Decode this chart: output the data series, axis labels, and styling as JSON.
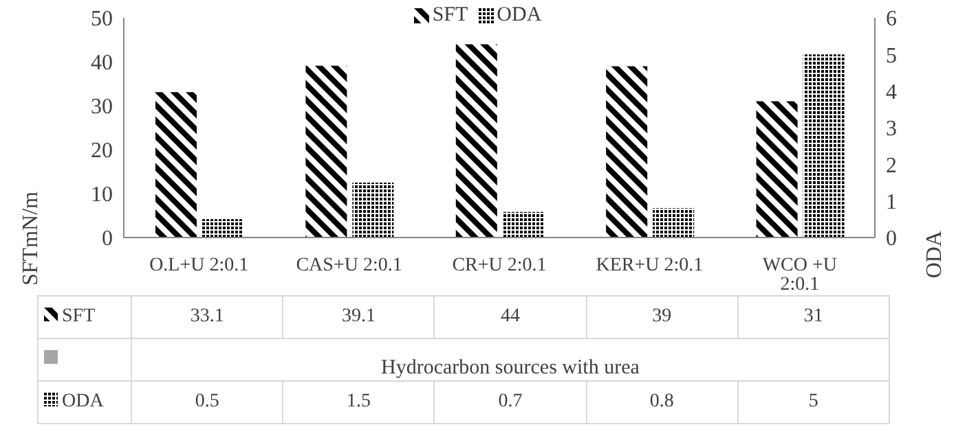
{
  "chart_data": {
    "type": "bar",
    "xlabel": "Hydrocarbon sources with urea",
    "ylabel": "SFTmN/m",
    "y2label": "ODA",
    "categories": [
      "O.L+U 2:0.1",
      "CAS+U 2:0.1",
      "CR+U 2:0.1",
      "KER+U 2:0.1",
      "WCO +U 2:0.1"
    ],
    "series": [
      {
        "name": "SFT",
        "color": "#000000",
        "values": [
          33.1,
          39.1,
          44,
          39,
          31
        ]
      },
      {
        "name": "ODA",
        "color": "#000000",
        "axis": "y2",
        "values": [
          0.5,
          1.5,
          0.7,
          0.8,
          5
        ]
      }
    ],
    "ylim": [
      0,
      50
    ],
    "yticks": [
      0,
      10,
      20,
      30,
      40,
      50
    ],
    "y2lim": [
      0,
      6
    ],
    "y2ticks": [
      0,
      1,
      2,
      3,
      4,
      5,
      6
    ],
    "legend": "top",
    "data_labels": true
  }
}
